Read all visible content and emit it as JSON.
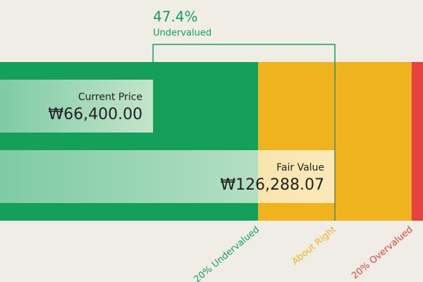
{
  "chart_data": {
    "type": "valuation",
    "difference": {
      "value": 47.4,
      "label": "47.4%"
    },
    "difference_text": "Undervalued",
    "categories": [
      "Current Price",
      "Fair Value"
    ],
    "values": [
      66400,
      126288.07
    ],
    "value_labels": [
      "₩66,400.00",
      "₩126,288.07"
    ],
    "xlim": [
      16000,
      155300
    ],
    "zones": [
      {
        "name": "20% Undervalued",
        "color": "#14a05a",
        "start": 16000
      },
      {
        "name": "About Right",
        "color": "#efb31d",
        "start": 101030
      },
      {
        "name": "20% Overvalued",
        "color": "#e64141",
        "start": 151546
      }
    ]
  }
}
